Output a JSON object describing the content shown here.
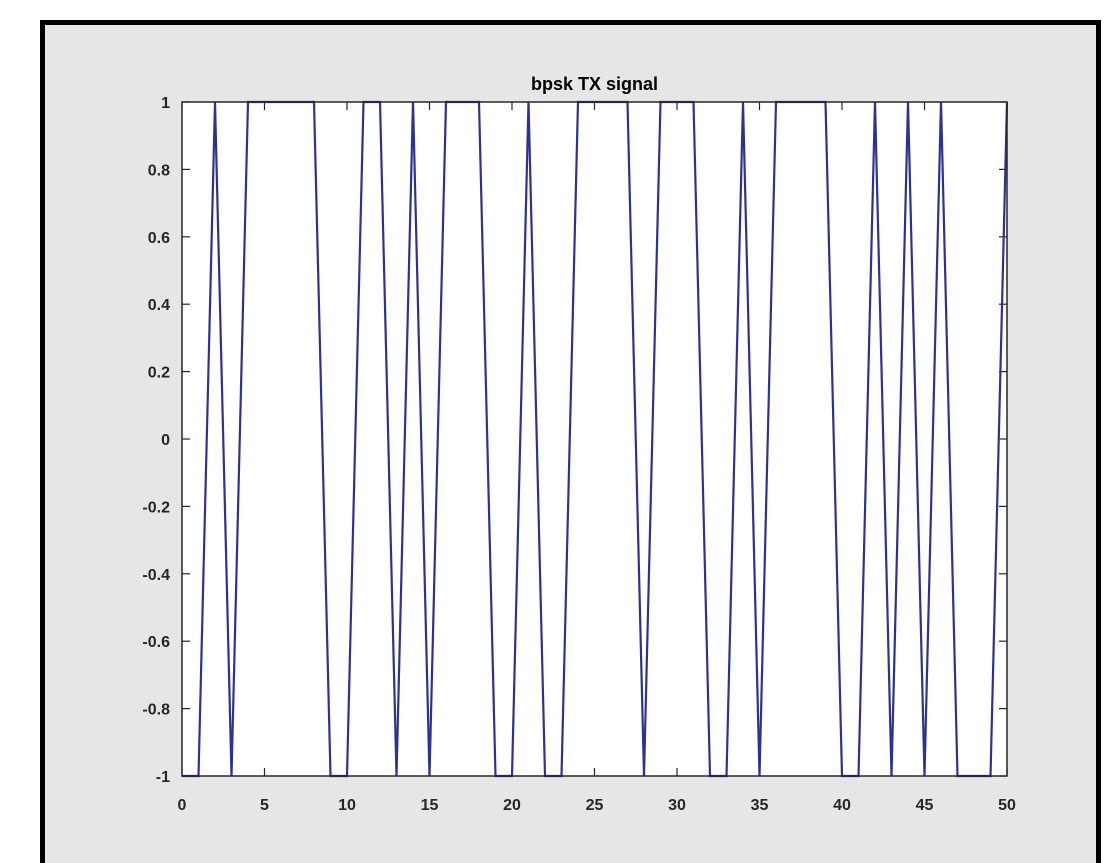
{
  "chart_data": {
    "type": "line",
    "title": "bpsk TX signal",
    "xlabel": "",
    "ylabel": "",
    "xlim": [
      0,
      50
    ],
    "ylim": [
      -1,
      1
    ],
    "grid": false,
    "x_ticks": [
      "0",
      "5",
      "10",
      "15",
      "20",
      "25",
      "30",
      "35",
      "40",
      "45",
      "50"
    ],
    "y_ticks": [
      "-1",
      "-0.8",
      "-0.6",
      "-0.4",
      "-0.2",
      "0",
      "0.2",
      "0.4",
      "0.6",
      "0.8",
      "1"
    ],
    "series": [
      {
        "x": [
          0,
          1,
          2,
          3,
          4,
          5,
          6,
          7,
          8,
          9,
          10,
          11,
          12,
          13,
          14,
          15,
          16,
          17,
          18,
          19,
          20,
          21,
          22,
          23,
          24,
          25,
          26,
          27,
          28,
          29,
          30,
          31,
          32,
          33,
          34,
          35,
          36,
          37,
          38,
          39,
          40,
          41,
          42,
          43,
          44,
          45,
          46,
          47,
          48,
          49,
          50
        ],
        "values": [
          -1,
          -1,
          1,
          -1,
          1,
          1,
          1,
          1,
          1,
          -1,
          -1,
          1,
          1,
          -1,
          1,
          -1,
          1,
          1,
          1,
          -1,
          -1,
          1,
          -1,
          -1,
          1,
          1,
          1,
          1,
          -1,
          1,
          1,
          1,
          -1,
          -1,
          1,
          -1,
          1,
          1,
          1,
          1,
          -1,
          -1,
          1,
          -1,
          1,
          -1,
          1,
          -1,
          -1,
          -1,
          1
        ],
        "color": "#2e3192"
      }
    ]
  }
}
